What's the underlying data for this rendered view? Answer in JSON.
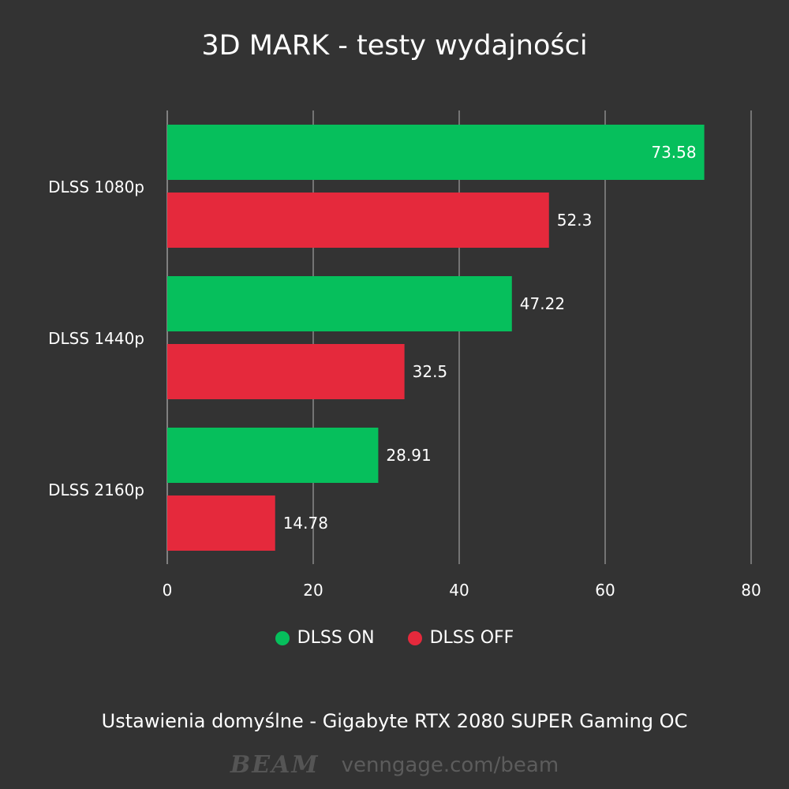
{
  "title": "3D MARK - testy wydajności",
  "subtitle": "Ustawienia domyślne - Gigabyte RTX 2080 SUPER Gaming OC",
  "footer": {
    "brand": "BEAM",
    "url": "venngage.com/beam"
  },
  "colors": {
    "background": "#333333",
    "on": "#06bf5c",
    "off": "#e5293c",
    "grid": "#8a8a8a"
  },
  "chart_data": {
    "type": "bar",
    "orientation": "horizontal",
    "title": "3D MARK - testy wydajności",
    "categories": [
      "DLSS 1080p",
      "DLSS 1440p",
      "DLSS 2160p"
    ],
    "series": [
      {
        "name": "DLSS ON",
        "color": "#06bf5c",
        "values": [
          73.58,
          47.22,
          28.91
        ],
        "labels": [
          "73.58",
          "47.22",
          "28.91"
        ]
      },
      {
        "name": "DLSS OFF",
        "color": "#e5293c",
        "values": [
          52.3,
          32.5,
          14.78
        ],
        "labels": [
          "52.3",
          "32.5",
          "14.78"
        ]
      }
    ],
    "xlim": [
      0,
      80
    ],
    "xticks": [
      0,
      20,
      40,
      60,
      80
    ],
    "grid": true,
    "legend": "bottom"
  }
}
